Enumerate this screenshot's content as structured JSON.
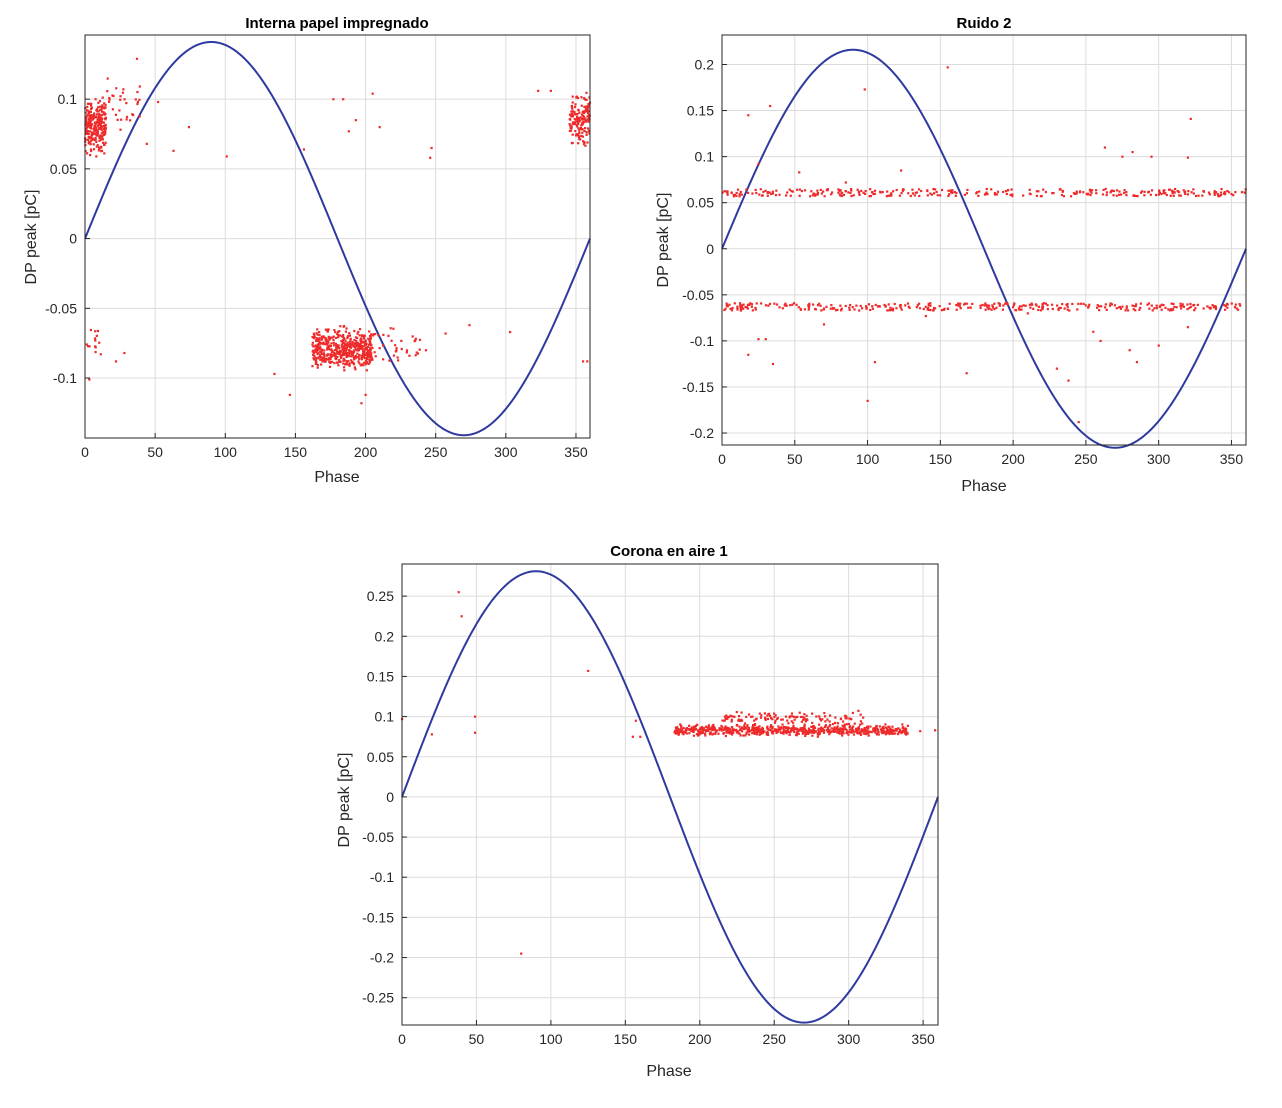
{
  "colors": {
    "points": "#ee2a2a",
    "sine": "#2e3a9f",
    "grid": "#dcdcdc",
    "axis": "#262626"
  },
  "chart_data": [
    {
      "type": "scatter",
      "title": "Interna papel impregnado",
      "xlabel": "Phase",
      "ylabel": "DP peak [pC]",
      "xlim": [
        0,
        360
      ],
      "ylim": [
        -0.143,
        0.146
      ],
      "xticks": [
        0,
        50,
        100,
        150,
        200,
        250,
        300,
        350
      ],
      "yticks": [
        -0.1,
        -0.05,
        0,
        0.05,
        0.1
      ],
      "ytick_labels": [
        "-0.1",
        "-0.05",
        "0",
        "0.05",
        "0.1"
      ],
      "grid": true,
      "reference_sine": {
        "amplitude": 0.141,
        "period": 360
      },
      "series": [
        {
          "clusters": [
            {
              "x_range": [
                0,
                15
              ],
              "y_range": [
                0.055,
                0.105
              ],
              "count": 260
            },
            {
              "x_range": [
                8,
                40
              ],
              "y_range": [
                0.075,
                0.12
              ],
              "count": 40
            },
            {
              "x_range": [
                345,
                360
              ],
              "y_range": [
                0.062,
                0.11
              ],
              "count": 150
            },
            {
              "x_range": [
                162,
                205
              ],
              "y_range": [
                -0.1,
                -0.06
              ],
              "count": 480
            },
            {
              "x_range": [
                185,
                240
              ],
              "y_range": [
                -0.095,
                -0.06
              ],
              "count": 60
            },
            {
              "x_range": [
                0,
                12
              ],
              "y_range": [
                -0.09,
                -0.06
              ],
              "count": 14
            }
          ],
          "points": [
            [
              3,
              -0.101
            ],
            [
              28,
              -0.082
            ],
            [
              22,
              -0.088
            ],
            [
              37,
              0.129
            ],
            [
              52,
              0.098
            ],
            [
              44,
              0.068
            ],
            [
              63,
              0.063
            ],
            [
              74,
              0.08
            ],
            [
              101,
              0.059
            ],
            [
              135,
              -0.097
            ],
            [
              146,
              -0.112
            ],
            [
              156,
              0.064
            ],
            [
              177,
              0.1
            ],
            [
              184,
              0.1
            ],
            [
              193,
              0.085
            ],
            [
              188,
              0.077
            ],
            [
              205,
              0.104
            ],
            [
              210,
              0.08
            ],
            [
              246,
              0.058
            ],
            [
              247,
              0.065
            ],
            [
              257,
              -0.068
            ],
            [
              274,
              -0.062
            ],
            [
              303,
              -0.067
            ],
            [
              323,
              0.106
            ],
            [
              332,
              0.106
            ],
            [
              355,
              -0.088
            ],
            [
              358,
              -0.088
            ],
            [
              197,
              -0.118
            ],
            [
              200,
              -0.112
            ],
            [
              243,
              -0.08
            ]
          ]
        }
      ]
    },
    {
      "type": "scatter",
      "title": "Ruido 2",
      "xlabel": "Phase",
      "ylabel": "DP peak [pC]",
      "xlim": [
        0,
        360
      ],
      "ylim": [
        -0.213,
        0.232
      ],
      "xticks": [
        0,
        50,
        100,
        150,
        200,
        250,
        300,
        350
      ],
      "yticks": [
        -0.2,
        -0.15,
        -0.1,
        -0.05,
        0,
        0.05,
        0.1,
        0.15,
        0.2
      ],
      "ytick_labels": [
        "-0.2",
        "-0.15",
        "-0.1",
        "-0.05",
        "0",
        "0.05",
        "0.1",
        "0.15",
        "0.2"
      ],
      "grid": true,
      "reference_sine": {
        "amplitude": 0.216,
        "period": 360
      },
      "series": [
        {
          "bands": [
            {
              "x_range": [
                0,
                360
              ],
              "y": 0.061,
              "spread": 0.004,
              "count": 320
            },
            {
              "x_range": [
                0,
                360
              ],
              "y": -0.063,
              "spread": 0.004,
              "count": 340
            }
          ],
          "points": [
            [
              18,
              0.145
            ],
            [
              33,
              0.155
            ],
            [
              25,
              0.092
            ],
            [
              53,
              0.083
            ],
            [
              98,
              0.173
            ],
            [
              155,
              0.197
            ],
            [
              123,
              0.085
            ],
            [
              85,
              0.072
            ],
            [
              263,
              0.11
            ],
            [
              275,
              0.1
            ],
            [
              282,
              0.105
            ],
            [
              295,
              0.1
            ],
            [
              320,
              0.099
            ],
            [
              322,
              0.141
            ],
            [
              35,
              -0.125
            ],
            [
              18,
              -0.115
            ],
            [
              25,
              -0.098
            ],
            [
              30,
              -0.098
            ],
            [
              100,
              -0.165
            ],
            [
              105,
              -0.123
            ],
            [
              168,
              -0.135
            ],
            [
              140,
              -0.073
            ],
            [
              230,
              -0.13
            ],
            [
              245,
              -0.188
            ],
            [
              238,
              -0.143
            ],
            [
              260,
              -0.1
            ],
            [
              255,
              -0.09
            ],
            [
              280,
              -0.11
            ],
            [
              285,
              -0.123
            ],
            [
              300,
              -0.105
            ],
            [
              320,
              -0.085
            ],
            [
              210,
              -0.07
            ],
            [
              70,
              -0.082
            ]
          ]
        }
      ]
    },
    {
      "type": "scatter",
      "title": "Corona en aire 1",
      "xlabel": "Phase",
      "ylabel": "DP peak [pC]",
      "xlim": [
        0,
        360
      ],
      "ylim": [
        -0.284,
        0.29
      ],
      "xticks": [
        0,
        50,
        100,
        150,
        200,
        250,
        300,
        350
      ],
      "yticks": [
        -0.25,
        -0.2,
        -0.15,
        -0.1,
        -0.05,
        0,
        0.05,
        0.1,
        0.15,
        0.2,
        0.25
      ],
      "ytick_labels": [
        "-0.25",
        "-0.2",
        "-0.15",
        "-0.1",
        "-0.05",
        "0",
        "0.05",
        "0.1",
        "0.15",
        "0.2",
        "0.25"
      ],
      "grid": true,
      "reference_sine": {
        "amplitude": 0.281,
        "period": 360
      },
      "series": [
        {
          "clusters": [
            {
              "x_range": [
                183,
                340
              ],
              "y_range": [
                0.074,
                0.092
              ],
              "count": 650
            },
            {
              "x_range": [
                215,
                310
              ],
              "y_range": [
                0.085,
                0.11
              ],
              "count": 120
            }
          ],
          "points": [
            [
              38,
              0.255
            ],
            [
              40,
              0.225
            ],
            [
              20,
              0.078
            ],
            [
              49,
              0.1
            ],
            [
              49,
              0.08
            ],
            [
              125,
              0.157
            ],
            [
              157,
              0.095
            ],
            [
              155,
              0.075
            ],
            [
              160,
              0.075
            ],
            [
              80,
              -0.195
            ],
            [
              348,
              0.082
            ],
            [
              358,
              0.083
            ],
            [
              0,
              0.097
            ]
          ]
        }
      ]
    }
  ]
}
